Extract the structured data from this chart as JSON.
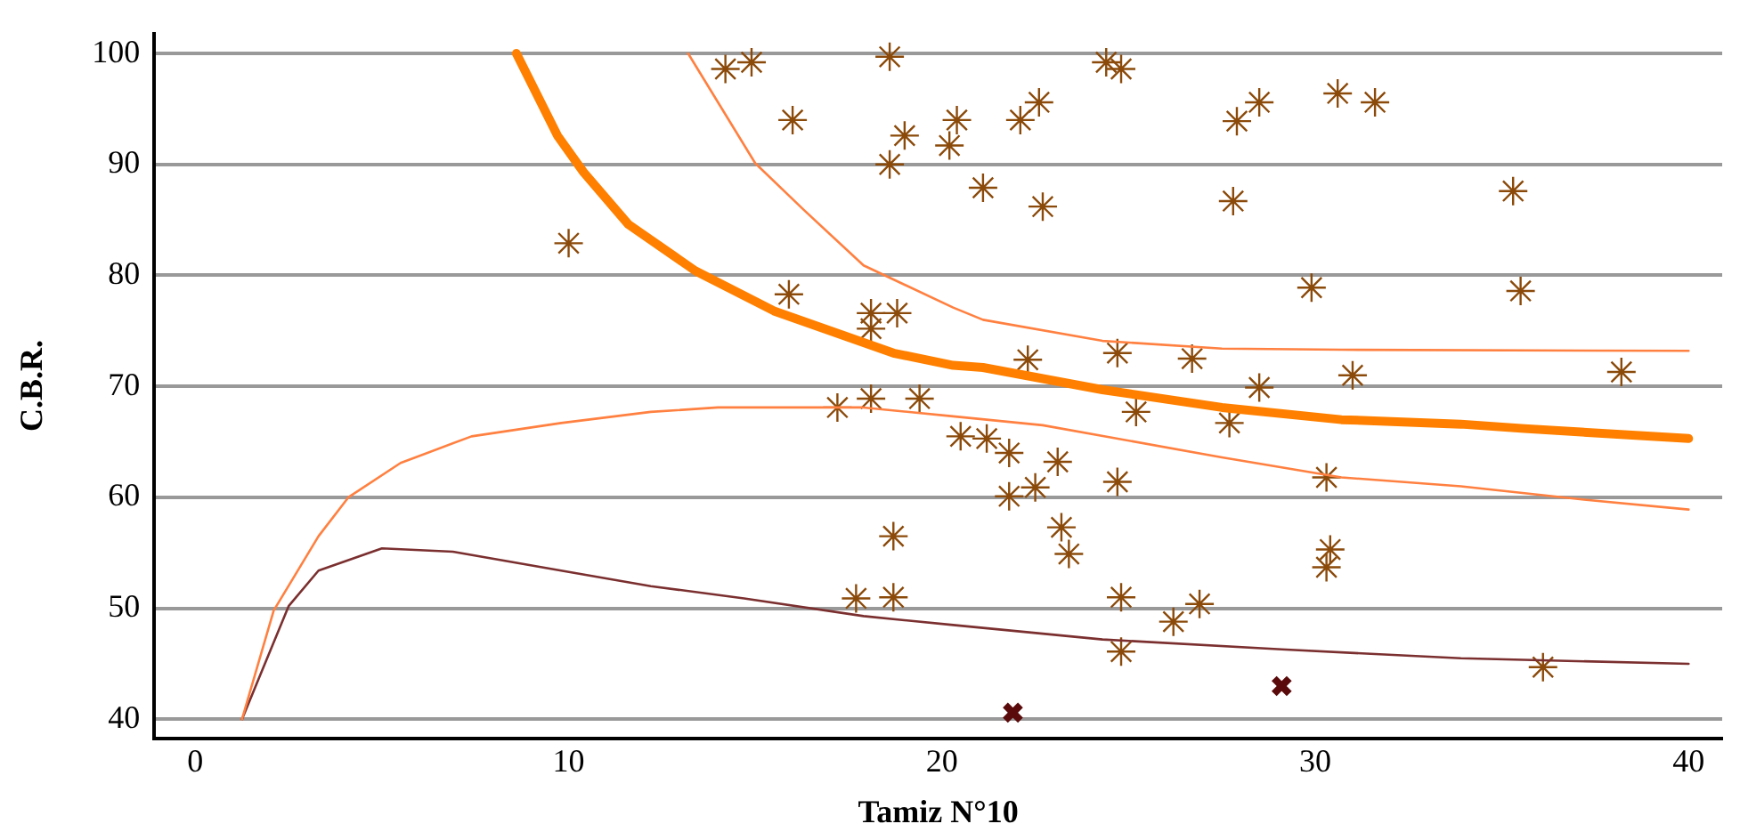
{
  "chart_data": {
    "type": "scatter",
    "xlabel": "Tamiz N°10",
    "ylabel": "C.B.R.",
    "xlim": [
      -1.1,
      40.9
    ],
    "ylim": [
      38.3,
      101.8
    ],
    "xticks": [
      0,
      10,
      20,
      30,
      40
    ],
    "yticks": [
      40,
      50,
      60,
      70,
      80,
      90,
      100
    ],
    "grid": "y",
    "legend": false,
    "series": [
      {
        "type": "line",
        "color": "#ff8000",
        "marker": "none",
        "x": [
          8.6,
          9.7,
          10.4,
          11.6,
          13.4,
          15.5,
          18.7,
          20.3,
          21.1,
          24.3,
          27.5,
          30.7,
          33.9,
          35.6,
          40
        ],
        "values": [
          100,
          92.6,
          89.3,
          84.6,
          80.4,
          76.8,
          73,
          71.9,
          71.7,
          69.7,
          68.1,
          67,
          66.6,
          66.2,
          65.3
        ]
      },
      {
        "type": "line",
        "color": "#ff8040",
        "marker": "none",
        "x": [
          13.2,
          15,
          16.3,
          17.9,
          20.3,
          21.1,
          24.3,
          27.5,
          30.7,
          40
        ],
        "values": [
          100,
          90.1,
          85.9,
          80.9,
          77.1,
          76,
          74.1,
          73.4,
          73.3,
          73.2
        ]
      },
      {
        "type": "line",
        "color": "#ff8040",
        "marker": "none",
        "x": [
          1.25,
          2.1,
          3.3,
          4.1,
          5.5,
          7.4,
          9.8,
          12.2,
          14,
          17.9,
          20.3,
          22.7,
          27.5,
          30.7,
          33.9,
          37.2,
          40
        ],
        "values": [
          40,
          49.8,
          56.5,
          60,
          63.1,
          65.5,
          66.7,
          67.7,
          68.1,
          68.1,
          67.3,
          66.5,
          63.6,
          61.8,
          61,
          59.8,
          58.9
        ]
      },
      {
        "type": "line",
        "color": "#7b2f2f",
        "marker": "none",
        "x": [
          1.25,
          2.5,
          3.3,
          5,
          6.9,
          9.8,
          12.2,
          14.7,
          17.9,
          20.3,
          24.3,
          29.1,
          33.9,
          40
        ],
        "values": [
          40,
          50.2,
          53.4,
          55.4,
          55.1,
          53.4,
          52,
          50.9,
          49.3,
          48.5,
          47.2,
          46.3,
          45.5,
          45
        ]
      },
      {
        "color": "#8b4a0a",
        "x": [
          10,
          14.2,
          14.9,
          16,
          15.9,
          18.6,
          19,
          18.6,
          20.2,
          20.4,
          21.1,
          22.1,
          22.6,
          22.7,
          24.4,
          24.8,
          27.9,
          28.5,
          27.8,
          30.6,
          31.6,
          35.3,
          29.9,
          35.5,
          18.1,
          18.8,
          18.1,
          22.3,
          24.7,
          26.7,
          28.5,
          31,
          38.2,
          18.1,
          19.4,
          25.2,
          27.7,
          17.2,
          20.5,
          21.2,
          21.8,
          21.8,
          22.5,
          23.1,
          24.7,
          30.3,
          18.7,
          23.2,
          23.4,
          30.4,
          30.3,
          18.7,
          17.7,
          24.8,
          26.2,
          26.9,
          24.8,
          36.1
        ],
        "values": [
          82.9,
          98.6,
          99.2,
          94,
          78.3,
          99.7,
          92.6,
          90,
          91.7,
          94,
          87.9,
          94,
          95.6,
          86.2,
          99.2,
          98.6,
          93.9,
          95.6,
          86.7,
          96.4,
          95.6,
          87.6,
          78.9,
          78.6,
          76.6,
          76.6,
          75.2,
          72.4,
          73,
          72.5,
          69.9,
          71,
          71.3,
          68.9,
          68.9,
          67.7,
          66.7,
          68.1,
          65.5,
          65.3,
          64,
          60.1,
          60.9,
          63.2,
          61.4,
          61.8,
          56.5,
          57.3,
          54.9,
          55.3,
          53.7,
          51,
          50.9,
          51,
          48.8,
          50.4,
          46.1,
          44.7
        ]
      },
      {
        "color": "#5a0a0a",
        "marker": "cross",
        "x": [
          21.9,
          29.1
        ],
        "values": [
          40.6,
          43
        ]
      }
    ]
  }
}
